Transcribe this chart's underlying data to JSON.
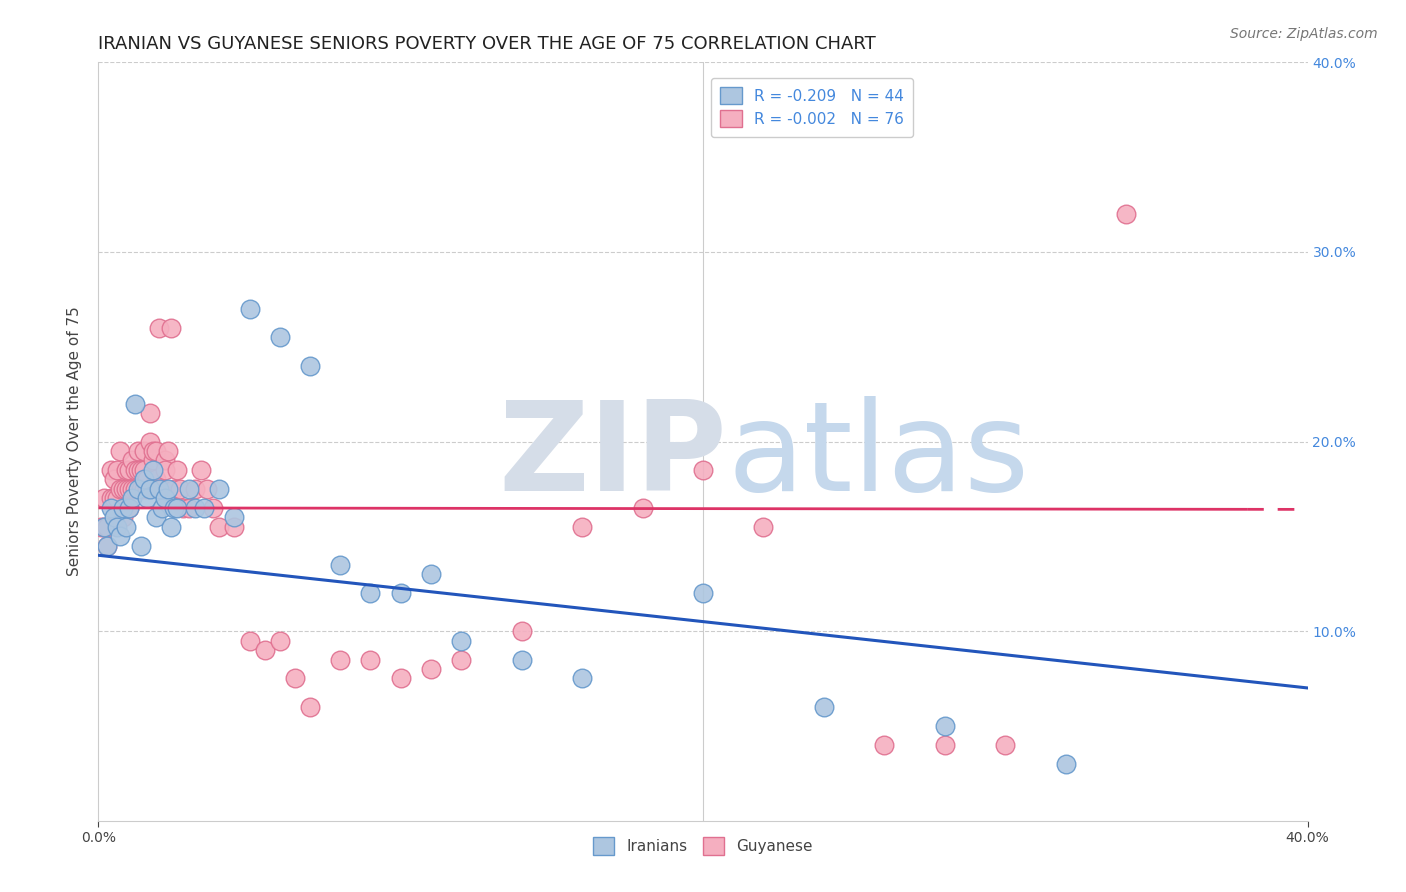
{
  "title": "IRANIAN VS GUYANESE SENIORS POVERTY OVER THE AGE OF 75 CORRELATION CHART",
  "source": "Source: ZipAtlas.com",
  "ylabel": "Seniors Poverty Over the Age of 75",
  "xlim": [
    0.0,
    0.4
  ],
  "ylim": [
    0.0,
    0.4
  ],
  "iranian_color": "#adc6e0",
  "guyanese_color": "#f5afc0",
  "iranian_edge": "#6699cc",
  "guyanese_edge": "#e07090",
  "trend_iranian_color": "#2255bb",
  "trend_guyanese_color": "#dd3366",
  "R_iranian": -0.209,
  "N_iranian": 44,
  "R_guyanese": -0.002,
  "N_guyanese": 76,
  "legend_label_iranian": "Iranians",
  "legend_label_guyanese": "Guyanese",
  "iranians_x": [
    0.002,
    0.003,
    0.004,
    0.005,
    0.006,
    0.007,
    0.008,
    0.009,
    0.01,
    0.011,
    0.012,
    0.013,
    0.014,
    0.015,
    0.016,
    0.017,
    0.018,
    0.019,
    0.02,
    0.021,
    0.022,
    0.023,
    0.024,
    0.025,
    0.026,
    0.03,
    0.032,
    0.035,
    0.04,
    0.045,
    0.05,
    0.06,
    0.07,
    0.08,
    0.09,
    0.1,
    0.11,
    0.12,
    0.14,
    0.16,
    0.2,
    0.24,
    0.28,
    0.32
  ],
  "iranians_y": [
    0.155,
    0.145,
    0.165,
    0.16,
    0.155,
    0.15,
    0.165,
    0.155,
    0.165,
    0.17,
    0.22,
    0.175,
    0.145,
    0.18,
    0.17,
    0.175,
    0.185,
    0.16,
    0.175,
    0.165,
    0.17,
    0.175,
    0.155,
    0.165,
    0.165,
    0.175,
    0.165,
    0.165,
    0.175,
    0.16,
    0.27,
    0.255,
    0.24,
    0.135,
    0.12,
    0.12,
    0.13,
    0.095,
    0.085,
    0.075,
    0.12,
    0.06,
    0.05,
    0.03
  ],
  "guyanese_x": [
    0.001,
    0.002,
    0.002,
    0.003,
    0.003,
    0.004,
    0.004,
    0.005,
    0.005,
    0.006,
    0.006,
    0.007,
    0.007,
    0.008,
    0.008,
    0.009,
    0.009,
    0.01,
    0.01,
    0.01,
    0.011,
    0.011,
    0.012,
    0.012,
    0.013,
    0.013,
    0.014,
    0.014,
    0.015,
    0.015,
    0.015,
    0.016,
    0.016,
    0.017,
    0.017,
    0.018,
    0.018,
    0.019,
    0.019,
    0.02,
    0.02,
    0.021,
    0.022,
    0.022,
    0.023,
    0.024,
    0.025,
    0.026,
    0.027,
    0.028,
    0.03,
    0.032,
    0.034,
    0.036,
    0.038,
    0.04,
    0.045,
    0.05,
    0.055,
    0.06,
    0.065,
    0.07,
    0.08,
    0.09,
    0.1,
    0.11,
    0.12,
    0.14,
    0.16,
    0.18,
    0.2,
    0.22,
    0.26,
    0.28,
    0.3,
    0.34
  ],
  "guyanese_y": [
    0.155,
    0.155,
    0.17,
    0.145,
    0.155,
    0.17,
    0.185,
    0.17,
    0.18,
    0.17,
    0.185,
    0.175,
    0.195,
    0.16,
    0.175,
    0.175,
    0.185,
    0.165,
    0.175,
    0.185,
    0.175,
    0.19,
    0.175,
    0.185,
    0.185,
    0.195,
    0.175,
    0.185,
    0.185,
    0.195,
    0.175,
    0.175,
    0.18,
    0.2,
    0.215,
    0.19,
    0.195,
    0.195,
    0.18,
    0.175,
    0.26,
    0.175,
    0.19,
    0.185,
    0.195,
    0.26,
    0.175,
    0.185,
    0.175,
    0.165,
    0.165,
    0.175,
    0.185,
    0.175,
    0.165,
    0.155,
    0.155,
    0.095,
    0.09,
    0.095,
    0.075,
    0.06,
    0.085,
    0.085,
    0.075,
    0.08,
    0.085,
    0.1,
    0.155,
    0.165,
    0.185,
    0.155,
    0.04,
    0.04,
    0.04,
    0.32
  ],
  "background_color": "#ffffff",
  "grid_color": "#cccccc",
  "watermark_zip": "ZIP",
  "watermark_atlas": "atlas",
  "watermark_color_zip": "#d5dde8",
  "watermark_color_atlas": "#c5d8ec",
  "watermark_fontsize": 90,
  "title_fontsize": 13,
  "axis_label_fontsize": 11,
  "tick_fontsize": 10,
  "legend_fontsize": 11,
  "source_fontsize": 10,
  "scatter_size": 180
}
